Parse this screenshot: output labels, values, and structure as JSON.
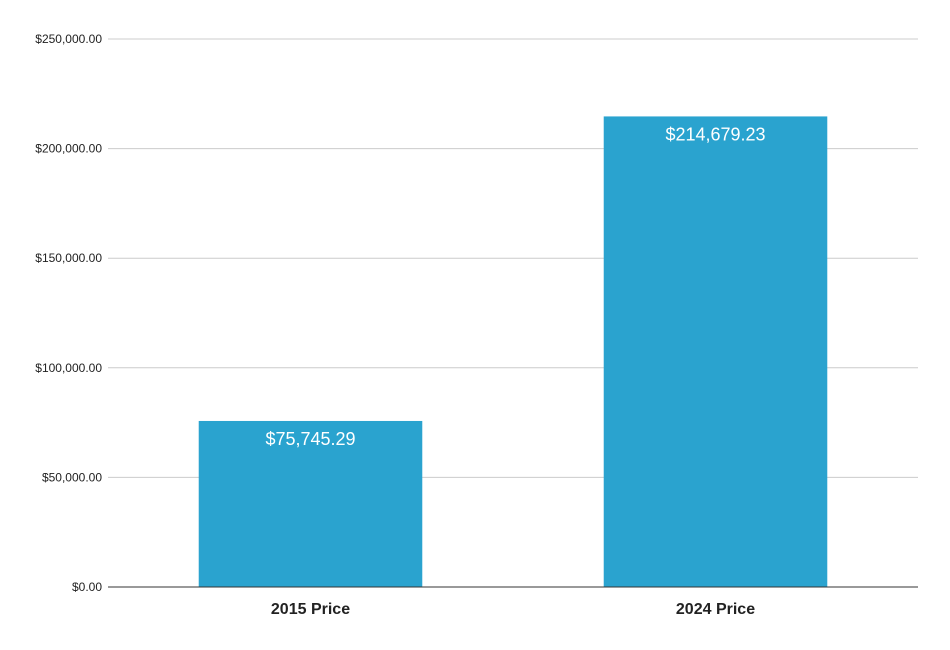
{
  "chart_data": {
    "type": "bar",
    "categories": [
      "2015 Price",
      "2024 Price"
    ],
    "values": [
      75745.29,
      214679.23
    ],
    "data_labels": [
      "$75,745.29",
      "$214,679.23"
    ],
    "y_ticks": [
      0,
      50000,
      100000,
      150000,
      200000,
      250000
    ],
    "y_tick_labels": [
      "$0.00",
      "$50,000.00",
      "$100,000.00",
      "$150,000.00",
      "$200,000.00",
      "$250,000.00"
    ],
    "ylim": [
      0,
      250000
    ],
    "grid": true,
    "legend": "none",
    "colors": {
      "bar": "#2aa3cf"
    }
  }
}
